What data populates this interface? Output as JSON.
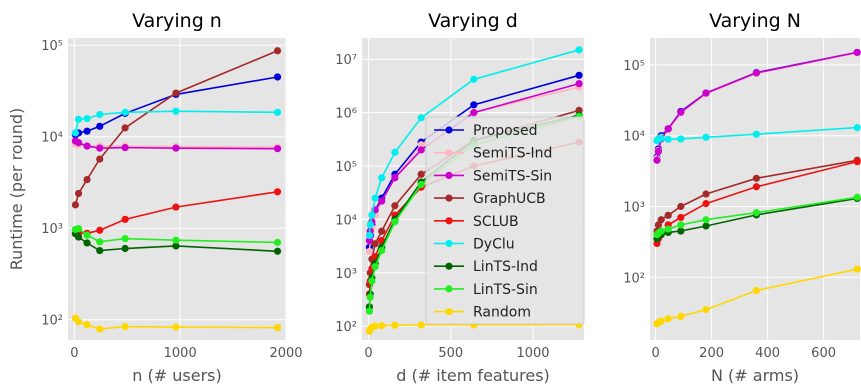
{
  "chart_data": [
    {
      "type": "line",
      "title": "Varying n",
      "xlabel": "n (# users)",
      "ylabel": "Runtime (per round)",
      "yscale": "log",
      "xlim": [
        -60,
        2000
      ],
      "ylim": [
        60,
        120000
      ],
      "xticks": [
        0,
        1000,
        2000
      ],
      "xtick_labels": [
        "0",
        "1000",
        "2000"
      ],
      "yticks": [
        100,
        1000,
        10000,
        100000
      ],
      "ytick_labels": [
        "10²",
        "10³",
        "10⁴",
        "10⁵"
      ],
      "grid": true,
      "x": [
        10,
        40,
        120,
        240,
        480,
        960,
        1920
      ],
      "series": [
        {
          "name": "Proposed",
          "color": "#0000dd",
          "values": [
            10500,
            11000,
            11500,
            13000,
            18000,
            29000,
            45000
          ]
        },
        {
          "name": "SemiTS-Ind",
          "color": "#ffb6c1",
          "values": [
            8300,
            8200,
            8000,
            7900,
            7900,
            7800,
            7700
          ]
        },
        {
          "name": "SemiTS-Sin",
          "color": "#cc00cc",
          "values": [
            9000,
            8600,
            7900,
            7500,
            7600,
            7500,
            7400
          ]
        },
        {
          "name": "GraphUCB",
          "color": "#a52a2a",
          "values": [
            1800,
            2400,
            3400,
            5700,
            12500,
            30000,
            87000
          ]
        },
        {
          "name": "SCLUB",
          "color": "#ee1111",
          "values": [
            870,
            890,
            880,
            950,
            1250,
            1700,
            2500
          ]
        },
        {
          "name": "DyClu",
          "color": "#00eeee",
          "values": [
            11000,
            15500,
            15800,
            17500,
            18500,
            19000,
            18500
          ]
        },
        {
          "name": "LinTS-Ind",
          "color": "#006400",
          "values": [
            870,
            800,
            690,
            570,
            600,
            640,
            560
          ]
        },
        {
          "name": "LinTS-Sin",
          "color": "#22ee22",
          "values": [
            970,
            990,
            840,
            710,
            770,
            740,
            700
          ]
        },
        {
          "name": "Random",
          "color": "#ffd700",
          "values": [
            104,
            95,
            88,
            79,
            84,
            83,
            82
          ]
        }
      ]
    },
    {
      "type": "line",
      "title": "Varying d",
      "xlabel": "d (# item features)",
      "ylabel": "",
      "yscale": "log",
      "xlim": [
        -40,
        1310
      ],
      "ylim": [
        55,
        25000000
      ],
      "xticks": [
        0,
        500,
        1000
      ],
      "xtick_labels": [
        "0",
        "500",
        "1000"
      ],
      "yticks": [
        100,
        1000,
        10000,
        100000,
        1000000,
        10000000
      ],
      "ytick_labels": [
        "10²",
        "10³",
        "10⁴",
        "10⁵",
        "10⁶",
        "10⁷"
      ],
      "grid": true,
      "legend": "center-right",
      "x": [
        5,
        10,
        20,
        40,
        80,
        160,
        320,
        640,
        1280
      ],
      "series": [
        {
          "name": "Proposed",
          "color": "#0000dd",
          "values": [
            3000,
            5000,
            8000,
            15000,
            25000,
            70000,
            280000,
            1400000,
            5000000
          ]
        },
        {
          "name": "SemiTS-Ind",
          "color": "#ffb6c1",
          "values": [
            2500,
            4000,
            7000,
            12000,
            22000,
            60000,
            250000,
            1000000,
            3000000
          ]
        },
        {
          "name": "SemiTS-Sin",
          "color": "#cc00cc",
          "values": [
            4000,
            6000,
            9000,
            15000,
            22000,
            60000,
            200000,
            1000000,
            3500000
          ]
        },
        {
          "name": "GraphUCB",
          "color": "#a52a2a",
          "values": [
            600,
            1000,
            1800,
            3500,
            6000,
            18000,
            70000,
            300000,
            1100000
          ]
        },
        {
          "name": "SCLUB",
          "color": "#ee1111",
          "values": [
            400,
            700,
            1200,
            2000,
            4000,
            12000,
            40000,
            100000,
            280000
          ]
        },
        {
          "name": "DyClu",
          "color": "#00eeee",
          "values": [
            5000,
            8000,
            12000,
            25000,
            60000,
            180000,
            800000,
            4200000,
            15000000
          ]
        },
        {
          "name": "LinTS-Ind",
          "color": "#006400",
          "values": [
            230,
            400,
            800,
            1500,
            3000,
            10000,
            50000,
            300000,
            900000
          ]
        },
        {
          "name": "LinTS-Sin",
          "color": "#22ee22",
          "values": [
            190,
            350,
            700,
            1300,
            2600,
            9000,
            45000,
            250000,
            850000
          ]
        },
        {
          "name": "Random",
          "color": "#ffd700",
          "values": [
            80,
            88,
            95,
            100,
            102,
            104,
            105,
            105,
            106
          ]
        }
      ]
    },
    {
      "type": "line",
      "title": "Varying N",
      "xlabel": "N (# arms)",
      "ylabel": "",
      "yscale": "log",
      "xlim": [
        -20,
        730
      ],
      "ylim": [
        13,
        240000
      ],
      "xticks": [
        0,
        200,
        400,
        600
      ],
      "xtick_labels": [
        "0",
        "200",
        "400",
        "600"
      ],
      "yticks": [
        100,
        1000,
        10000,
        100000
      ],
      "ytick_labels": [
        "10²",
        "10³",
        "10⁴",
        "10⁵"
      ],
      "grid": true,
      "x": [
        5,
        10,
        20,
        45,
        90,
        180,
        360,
        720
      ],
      "series": [
        {
          "name": "Proposed",
          "color": "#0000dd",
          "values": [
            5000,
            6500,
            10000,
            12500,
            22000,
            40000,
            78000,
            150000
          ]
        },
        {
          "name": "SemiTS-Ind",
          "color": "#ffb6c1",
          "values": [
            4800,
            6200,
            9500,
            12000,
            21000,
            39000,
            76000,
            148000
          ]
        },
        {
          "name": "SemiTS-Sin",
          "color": "#cc00cc",
          "values": [
            4500,
            6000,
            9000,
            12500,
            21500,
            40000,
            77000,
            150000
          ]
        },
        {
          "name": "GraphUCB",
          "color": "#a52a2a",
          "values": [
            450,
            550,
            650,
            750,
            1000,
            1500,
            2500,
            4500
          ]
        },
        {
          "name": "SCLUB",
          "color": "#ee1111",
          "values": [
            300,
            350,
            400,
            550,
            700,
            1100,
            1900,
            4300
          ]
        },
        {
          "name": "DyClu",
          "color": "#00eeee",
          "values": [
            8500,
            9000,
            9200,
            8900,
            9000,
            9500,
            10500,
            13000
          ]
        },
        {
          "name": "LinTS-Ind",
          "color": "#006400",
          "values": [
            350,
            380,
            400,
            430,
            450,
            530,
            760,
            1300
          ]
        },
        {
          "name": "LinTS-Sin",
          "color": "#22ee22",
          "values": [
            400,
            420,
            450,
            480,
            550,
            650,
            820,
            1350
          ]
        },
        {
          "name": "Random",
          "color": "#ffd700",
          "values": [
            22,
            23,
            24,
            26,
            28,
            35,
            65,
            130
          ]
        }
      ]
    }
  ]
}
